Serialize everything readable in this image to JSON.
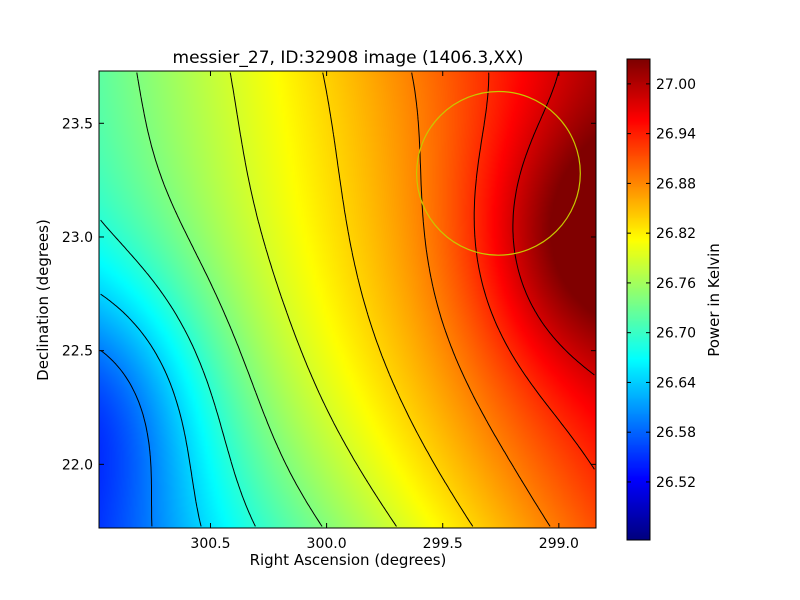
{
  "chart_data": {
    "type": "heatmap",
    "title": "messier_27, ID:32908 image (1406.3,XX)",
    "xlabel": "Right Ascension (degrees)",
    "ylabel": "Declination (degrees)",
    "colorbar_label": "Power in Kelvin",
    "xlim": [
      300.98,
      298.84
    ],
    "ylim": [
      21.72,
      23.73
    ],
    "x_ticks": [
      300.5,
      300.0,
      299.5,
      299.0
    ],
    "x_tick_labels": [
      "300.5",
      "300.0",
      "299.5",
      "299.0"
    ],
    "y_ticks": [
      22.0,
      22.5,
      23.0,
      23.5
    ],
    "y_tick_labels": [
      "22.0",
      "22.5",
      "23.0",
      "23.5"
    ],
    "color_range": [
      26.45,
      27.03
    ],
    "colorbar_ticks": [
      26.52,
      26.58,
      26.64,
      26.7,
      26.76,
      26.82,
      26.88,
      26.94,
      27.0
    ],
    "colorbar_tick_labels": [
      "26.52",
      "26.58",
      "26.64",
      "26.70",
      "26.76",
      "26.82",
      "26.88",
      "26.94",
      "27.00"
    ],
    "colormap": "jet",
    "contour_count": 11,
    "contour_color": "#000000",
    "grid": false,
    "peak": {
      "x": 298.85,
      "y": 23.0,
      "value": 27.02
    },
    "trough": {
      "x": 300.97,
      "y": 22.25,
      "value": 26.46
    },
    "beam_circle": {
      "x_center": 299.26,
      "y_center": 23.28,
      "radius_deg": 0.36,
      "color": "#c8c800"
    }
  }
}
